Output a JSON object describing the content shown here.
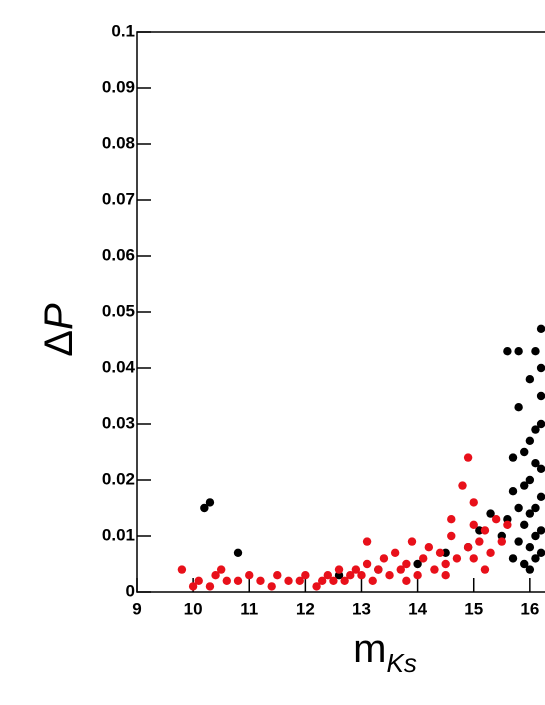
{
  "chart_data": {
    "type": "scatter",
    "xlabel": {
      "main": "m",
      "sub": "Ks"
    },
    "ylabel": {
      "main": "Δ",
      "italic": "P"
    },
    "xlim": [
      9,
      16.27
    ],
    "ylim": [
      0,
      0.1
    ],
    "xticks": [
      9,
      10,
      11,
      12,
      13,
      14,
      15,
      16
    ],
    "yticks": [
      0,
      0.01,
      0.02,
      0.03,
      0.04,
      0.05,
      0.06,
      0.07,
      0.08,
      0.09,
      0.1
    ],
    "series": [
      {
        "color": "#000000",
        "x": [
          10.2,
          10.3,
          10.8,
          12.6,
          13.3,
          14.0,
          14.5,
          14.9,
          15.1,
          15.3,
          15.5,
          15.6,
          15.7,
          15.8,
          15.8,
          15.9,
          15.9,
          16.0,
          16.0,
          16.0,
          16.1,
          16.1,
          16.1,
          16.2,
          16.2,
          16.2,
          16.2,
          15.7,
          15.8,
          15.9,
          16.0,
          16.1,
          16.2,
          15.6,
          15.7,
          15.9,
          16.0,
          16.1,
          16.2,
          16.2,
          16.1,
          15.8,
          16.0,
          16.2
        ],
        "values": [
          0.015,
          0.016,
          0.007,
          0.003,
          0.004,
          0.005,
          0.007,
          0.008,
          0.011,
          0.014,
          0.01,
          0.043,
          0.018,
          0.043,
          0.033,
          0.012,
          0.025,
          0.038,
          0.02,
          0.008,
          0.043,
          0.015,
          0.029,
          0.047,
          0.011,
          0.022,
          0.035,
          0.006,
          0.009,
          0.005,
          0.014,
          0.006,
          0.017,
          0.013,
          0.024,
          0.019,
          0.027,
          0.023,
          0.03,
          0.04,
          0.01,
          0.015,
          0.004,
          0.007
        ]
      },
      {
        "color": "#e8101a",
        "x": [
          9.8,
          10.0,
          10.1,
          10.3,
          10.4,
          10.5,
          10.6,
          10.8,
          11.0,
          11.2,
          11.4,
          11.5,
          11.7,
          11.9,
          12.0,
          12.2,
          12.3,
          12.4,
          12.5,
          12.6,
          12.7,
          12.8,
          12.9,
          13.0,
          13.1,
          13.1,
          13.2,
          13.3,
          13.4,
          13.5,
          13.6,
          13.7,
          13.8,
          13.9,
          14.0,
          14.1,
          14.2,
          14.3,
          14.4,
          14.5,
          14.6,
          14.7,
          14.8,
          14.9,
          14.9,
          15.0,
          15.0,
          15.1,
          15.2,
          15.3,
          15.4,
          15.5,
          15.2,
          14.5,
          13.8,
          15.6,
          15.0,
          14.6
        ],
        "values": [
          0.004,
          0.001,
          0.002,
          0.001,
          0.003,
          0.004,
          0.002,
          0.002,
          0.003,
          0.002,
          0.001,
          0.003,
          0.002,
          0.002,
          0.003,
          0.001,
          0.002,
          0.003,
          0.002,
          0.004,
          0.002,
          0.003,
          0.004,
          0.003,
          0.005,
          0.009,
          0.002,
          0.004,
          0.006,
          0.003,
          0.007,
          0.004,
          0.005,
          0.009,
          0.003,
          0.006,
          0.008,
          0.004,
          0.007,
          0.005,
          0.01,
          0.006,
          0.019,
          0.024,
          0.008,
          0.012,
          0.006,
          0.009,
          0.011,
          0.007,
          0.013,
          0.009,
          0.004,
          0.003,
          0.002,
          0.012,
          0.016,
          0.013
        ]
      }
    ]
  }
}
